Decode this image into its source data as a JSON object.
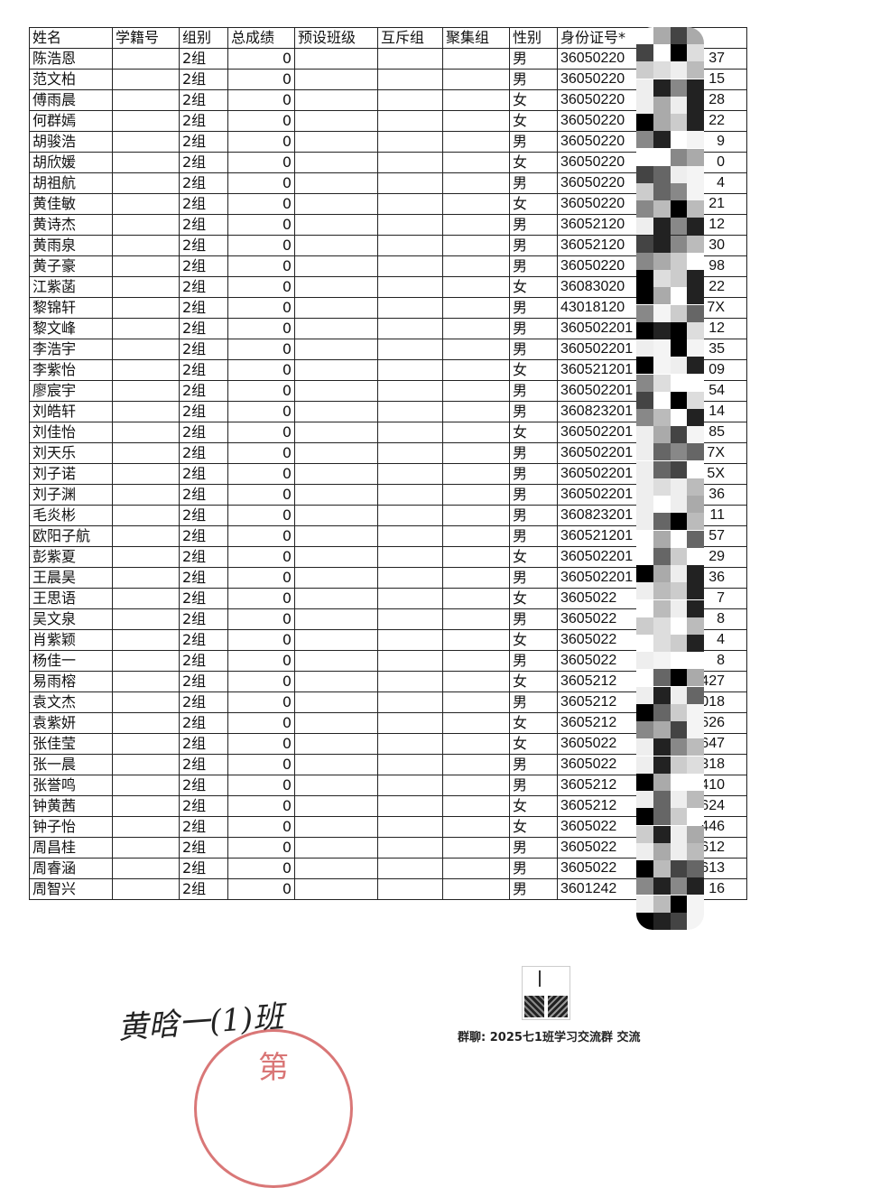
{
  "table": {
    "headers": [
      "姓名",
      "学籍号",
      "组别",
      "总成绩",
      "预设班级",
      "互斥组",
      "聚集组",
      "性别",
      "身份证号*"
    ],
    "rows": [
      [
        "陈浩恩",
        "",
        "2组",
        "0",
        "",
        "",
        "",
        "男",
        "36050220",
        "37"
      ],
      [
        "范文柏",
        "",
        "2组",
        "0",
        "",
        "",
        "",
        "男",
        "36050220",
        "15"
      ],
      [
        "傅雨晨",
        "",
        "2组",
        "0",
        "",
        "",
        "",
        "女",
        "36050220",
        "28"
      ],
      [
        "何群嫣",
        "",
        "2组",
        "0",
        "",
        "",
        "",
        "女",
        "36050220",
        "22"
      ],
      [
        "胡骏浩",
        "",
        "2组",
        "0",
        "",
        "",
        "",
        "男",
        "36050220",
        "9"
      ],
      [
        "胡欣媛",
        "",
        "2组",
        "0",
        "",
        "",
        "",
        "女",
        "36050220",
        "0"
      ],
      [
        "胡祖航",
        "",
        "2组",
        "0",
        "",
        "",
        "",
        "男",
        "36050220",
        "4"
      ],
      [
        "黄佳敏",
        "",
        "2组",
        "0",
        "",
        "",
        "",
        "女",
        "36050220",
        "21"
      ],
      [
        "黄诗杰",
        "",
        "2组",
        "0",
        "",
        "",
        "",
        "男",
        "36052120",
        "12"
      ],
      [
        "黄雨泉",
        "",
        "2组",
        "0",
        "",
        "",
        "",
        "男",
        "36052120",
        "30"
      ],
      [
        "黄子豪",
        "",
        "2组",
        "0",
        "",
        "",
        "",
        "男",
        "36050220",
        "98"
      ],
      [
        "江紫菡",
        "",
        "2组",
        "0",
        "",
        "",
        "",
        "女",
        "36083020",
        "22"
      ],
      [
        "黎锦轩",
        "",
        "2组",
        "0",
        "",
        "",
        "",
        "男",
        "43018120",
        "7X"
      ],
      [
        "黎文峰",
        "",
        "2组",
        "0",
        "",
        "",
        "",
        "男",
        "360502201",
        "12"
      ],
      [
        "李浩宇",
        "",
        "2组",
        "0",
        "",
        "",
        "",
        "男",
        "360502201",
        "35"
      ],
      [
        "李紫怡",
        "",
        "2组",
        "0",
        "",
        "",
        "",
        "女",
        "360521201",
        "09"
      ],
      [
        "廖宸宇",
        "",
        "2组",
        "0",
        "",
        "",
        "",
        "男",
        "360502201",
        "54"
      ],
      [
        "刘皓轩",
        "",
        "2组",
        "0",
        "",
        "",
        "",
        "男",
        "360823201",
        "14"
      ],
      [
        "刘佳怡",
        "",
        "2组",
        "0",
        "",
        "",
        "",
        "女",
        "360502201",
        "85"
      ],
      [
        "刘天乐",
        "",
        "2组",
        "0",
        "",
        "",
        "",
        "男",
        "360502201",
        "7X"
      ],
      [
        "刘子诺",
        "",
        "2组",
        "0",
        "",
        "",
        "",
        "男",
        "360502201",
        "5X"
      ],
      [
        "刘子渊",
        "",
        "2组",
        "0",
        "",
        "",
        "",
        "男",
        "360502201",
        "36"
      ],
      [
        "毛炎彬",
        "",
        "2组",
        "0",
        "",
        "",
        "",
        "男",
        "360823201",
        "11"
      ],
      [
        "欧阳子航",
        "",
        "2组",
        "0",
        "",
        "",
        "",
        "男",
        "360521201",
        "57"
      ],
      [
        "彭紫夏",
        "",
        "2组",
        "0",
        "",
        "",
        "",
        "女",
        "360502201",
        "29"
      ],
      [
        "王晨昊",
        "",
        "2组",
        "0",
        "",
        "",
        "",
        "男",
        "360502201",
        "36"
      ],
      [
        "王思语",
        "",
        "2组",
        "0",
        "",
        "",
        "",
        "女",
        "3605022",
        "7"
      ],
      [
        "吴文泉",
        "",
        "2组",
        "0",
        "",
        "",
        "",
        "男",
        "3605022",
        "8"
      ],
      [
        "肖紫颖",
        "",
        "2组",
        "0",
        "",
        "",
        "",
        "女",
        "3605022",
        "4"
      ],
      [
        "杨佳一",
        "",
        "2组",
        "0",
        "",
        "",
        "",
        "男",
        "3605022",
        "8"
      ],
      [
        "易雨榕",
        "",
        "2组",
        "0",
        "",
        "",
        "",
        "女",
        "3605212",
        "427"
      ],
      [
        "袁文杰",
        "",
        "2组",
        "0",
        "",
        "",
        "",
        "男",
        "3605212",
        "018"
      ],
      [
        "袁紫妍",
        "",
        "2组",
        "0",
        "",
        "",
        "",
        "女",
        "3605212",
        "626"
      ],
      [
        "张佳莹",
        "",
        "2组",
        "0",
        "",
        "",
        "",
        "女",
        "3605022",
        "647"
      ],
      [
        "张一晨",
        "",
        "2组",
        "0",
        "",
        "",
        "",
        "男",
        "3605022",
        "318"
      ],
      [
        "张誉鸣",
        "",
        "2组",
        "0",
        "",
        "",
        "",
        "男",
        "3605212",
        "410"
      ],
      [
        "钟黄茜",
        "",
        "2组",
        "0",
        "",
        "",
        "",
        "女",
        "3605212",
        "624"
      ],
      [
        "钟子怡",
        "",
        "2组",
        "0",
        "",
        "",
        "",
        "女",
        "3605022",
        "446"
      ],
      [
        "周昌桂",
        "",
        "2组",
        "0",
        "",
        "",
        "",
        "男",
        "3605022",
        "612"
      ],
      [
        "周睿涵",
        "",
        "2组",
        "0",
        "",
        "",
        "",
        "男",
        "3605022",
        "613"
      ],
      [
        "周智兴",
        "",
        "2组",
        "0",
        "",
        "",
        "",
        "男",
        "3601242",
        "16"
      ]
    ]
  },
  "footer": {
    "signature": "黄晗一(1)班",
    "stamp_text": "第",
    "group_caption": "群聊: 2025七1班学习交流群 交流"
  },
  "colors": {
    "stamp": "#d05555",
    "ink": "#111111"
  }
}
